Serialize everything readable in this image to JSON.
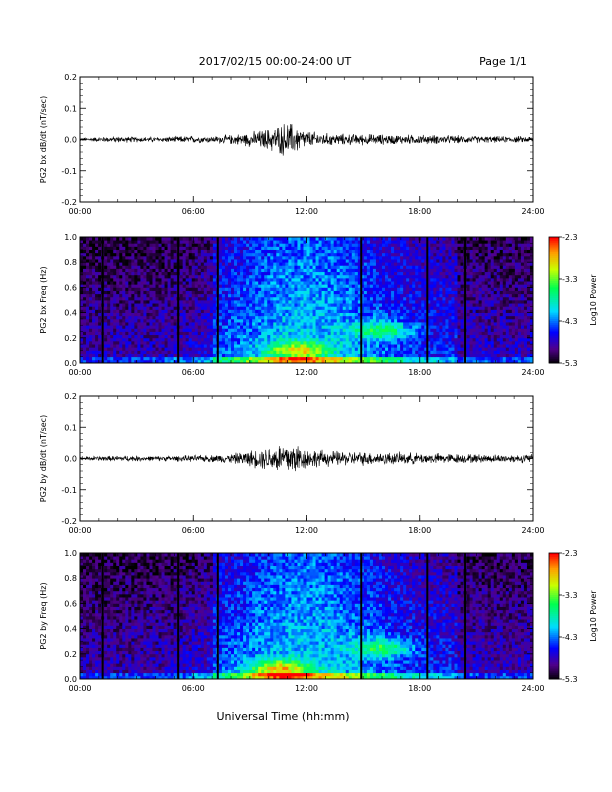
{
  "header": {
    "date_range": "2017/02/15  00:00-24:00 UT",
    "page": "Page 1/1"
  },
  "xlabel": "Universal Time (hh:mm)",
  "x_ticks": [
    "00:00",
    "06:00",
    "12:00",
    "18:00",
    "24:00"
  ],
  "colors": {
    "trace": "#000000",
    "gap_lines": "#000000"
  },
  "chart_data": [
    {
      "type": "line",
      "ylabel": "PG2 bx dB/dt (nT/sec)",
      "xlim": [
        0,
        24
      ],
      "ylim": [
        -0.2,
        0.2
      ],
      "y_ticks": [
        "0.2",
        "0.1",
        "0.0",
        "-0.1",
        "-0.2"
      ],
      "series": [
        {
          "x": [
            0,
            1,
            2,
            3,
            4,
            5,
            6,
            7,
            8,
            9,
            10,
            10.5,
            11,
            11.5,
            12,
            13,
            14,
            15,
            16,
            17,
            18,
            19,
            20,
            21,
            22,
            23,
            24
          ],
          "amplitude": [
            0.004,
            0.006,
            0.008,
            0.007,
            0.006,
            0.008,
            0.009,
            0.008,
            0.012,
            0.018,
            0.028,
            0.035,
            0.045,
            0.035,
            0.022,
            0.016,
            0.014,
            0.014,
            0.013,
            0.012,
            0.012,
            0.011,
            0.01,
            0.009,
            0.008,
            0.008,
            0.008
          ]
        }
      ]
    },
    {
      "type": "heatmap",
      "ylabel": "PG2 bx Freq (Hz)",
      "xlim": [
        0,
        24
      ],
      "ylim": [
        0,
        1.0
      ],
      "y_ticks": [
        "1.0",
        "0.8",
        "0.6",
        "0.4",
        "0.2",
        "0.0"
      ],
      "colorbar": {
        "label": "Log10 Power",
        "ticks": [
          "-2.3",
          "-3.3",
          "-4.3",
          "-5.3"
        ],
        "range": [
          -5.3,
          -2.3
        ]
      },
      "data_gaps_hours": [
        1.2,
        5.2,
        7.3,
        14.9,
        18.4,
        20.4
      ],
      "activity_centers": [
        {
          "hour": 11.5,
          "freq_hz": 0.1,
          "log_power": -2.8
        },
        {
          "hour": 16.0,
          "freq_hz": 0.26,
          "log_power": -3.2
        }
      ]
    },
    {
      "type": "line",
      "ylabel": "PG2 by dB/dt (nT/sec)",
      "xlim": [
        0,
        24
      ],
      "ylim": [
        -0.2,
        0.2
      ],
      "y_ticks": [
        "0.2",
        "0.1",
        "0.0",
        "-0.1",
        "-0.2"
      ],
      "series": [
        {
          "x": [
            0,
            1,
            2,
            3,
            4,
            5,
            6,
            7,
            8,
            9,
            10,
            10.5,
            11,
            11.5,
            12,
            13,
            14,
            15,
            16,
            17,
            18,
            19,
            20,
            21,
            22,
            23,
            24
          ],
          "amplitude": [
            0.005,
            0.006,
            0.007,
            0.007,
            0.006,
            0.007,
            0.008,
            0.009,
            0.012,
            0.02,
            0.03,
            0.038,
            0.045,
            0.04,
            0.025,
            0.02,
            0.018,
            0.017,
            0.016,
            0.015,
            0.014,
            0.013,
            0.012,
            0.011,
            0.01,
            0.01,
            0.012
          ]
        }
      ]
    },
    {
      "type": "heatmap",
      "ylabel": "PG2 by Freq (Hz)",
      "xlim": [
        0,
        24
      ],
      "ylim": [
        0,
        1.0
      ],
      "y_ticks": [
        "1.0",
        "0.8",
        "0.6",
        "0.4",
        "0.2",
        "0.0"
      ],
      "colorbar": {
        "label": "Log10 Power",
        "ticks": [
          "-2.3",
          "-3.3",
          "-4.3",
          "-5.3"
        ],
        "range": [
          -5.3,
          -2.3
        ]
      },
      "data_gaps_hours": [
        1.2,
        5.2,
        7.3,
        14.9,
        18.4,
        20.4
      ],
      "activity_centers": [
        {
          "hour": 10.5,
          "freq_hz": 0.08,
          "log_power": -2.6
        },
        {
          "hour": 16.0,
          "freq_hz": 0.25,
          "log_power": -3.2
        }
      ]
    }
  ]
}
